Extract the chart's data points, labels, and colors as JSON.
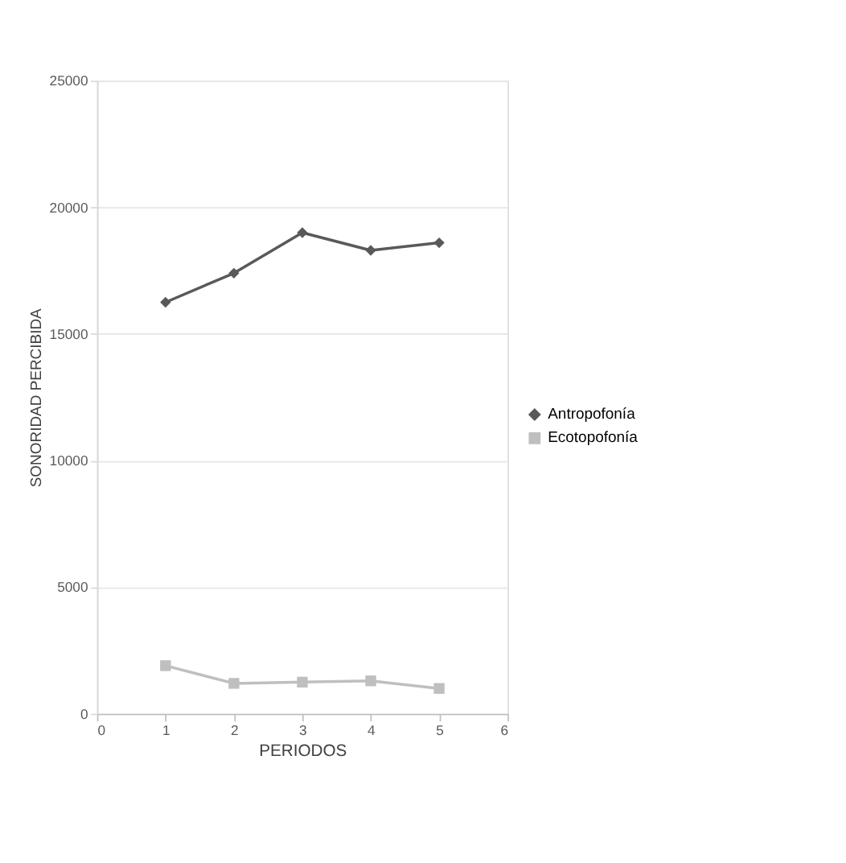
{
  "chart_data": {
    "type": "line",
    "xlabel": "PERIODOS",
    "ylabel": "SONORIDAD PERCIBIDA",
    "x": [
      1,
      2,
      3,
      4,
      5
    ],
    "series": [
      {
        "name": "Antropofonía",
        "color": "#595959",
        "marker": "diamond",
        "values": [
          16250,
          17400,
          19000,
          18300,
          18600
        ]
      },
      {
        "name": "Ecotopofonía",
        "color": "#bfbfbf",
        "marker": "square",
        "values": [
          1900,
          1200,
          1250,
          1300,
          1000
        ]
      }
    ],
    "xlim": [
      0,
      6
    ],
    "xticks": [
      0,
      1,
      2,
      3,
      4,
      5,
      6
    ],
    "ylim": [
      0,
      25000
    ],
    "yticks": [
      0,
      5000,
      10000,
      15000,
      20000,
      25000
    ],
    "grid": "y",
    "legend": "right",
    "line_style": "solid"
  }
}
